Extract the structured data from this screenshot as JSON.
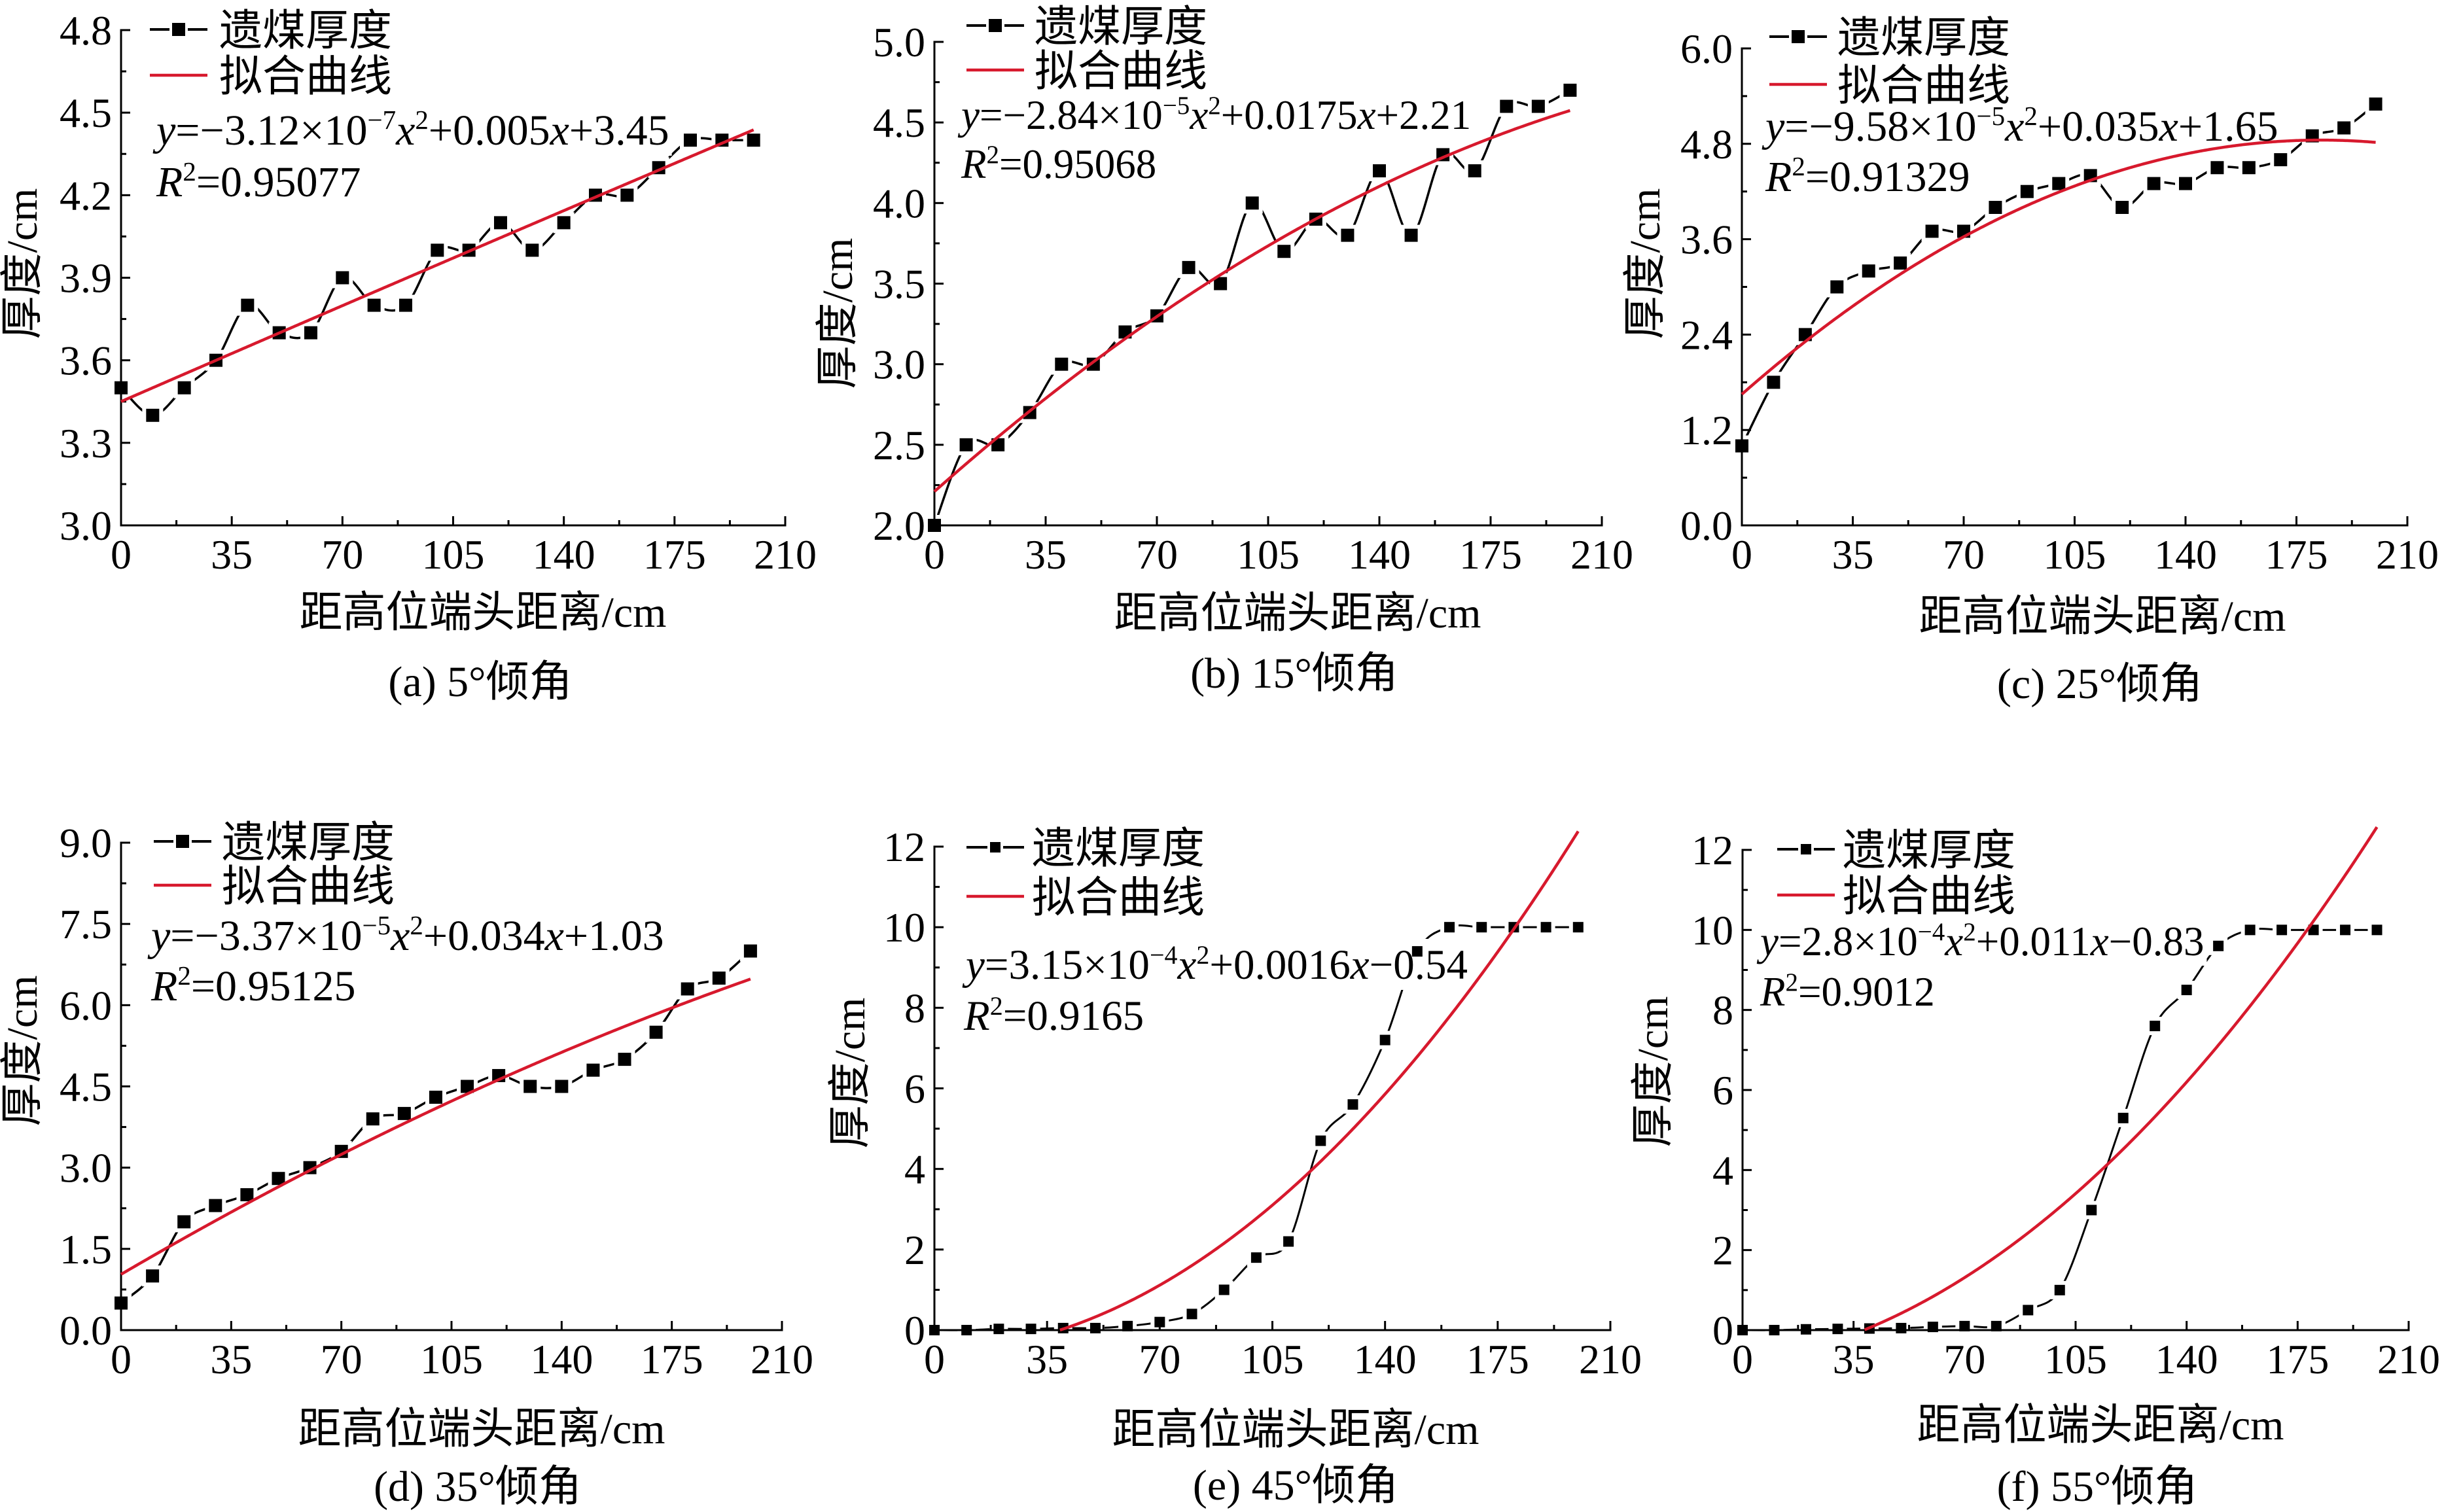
{
  "chart_data": [
    {
      "id": "a",
      "type": "line",
      "title": "(a) 5°倾角",
      "xlabel": "距高位端头距离/cm",
      "ylabel": "厚度/cm",
      "xlim": [
        0,
        210
      ],
      "ylim": [
        3.0,
        4.8
      ],
      "x_ticks": [
        "0",
        "35",
        "70",
        "105",
        "140",
        "175",
        "210"
      ],
      "y_ticks": [
        "3.0",
        "3.3",
        "3.6",
        "3.9",
        "4.2",
        "4.5",
        "4.8"
      ],
      "minor_ticks_between_major": 1,
      "grid": false,
      "legend_position": "top-left",
      "x": [
        0,
        10,
        20,
        30,
        40,
        50,
        60,
        70,
        80,
        90,
        100,
        110,
        120,
        130,
        140,
        150,
        160,
        170,
        180,
        190,
        200
      ],
      "series": [
        {
          "name": "遗煤厚度",
          "kind": "spline-with-square-markers",
          "color": "#000000",
          "values": [
            3.5,
            3.4,
            3.5,
            3.6,
            3.8,
            3.7,
            3.7,
            3.9,
            3.8,
            3.8,
            4.0,
            4.0,
            4.1,
            4.0,
            4.1,
            4.2,
            4.2,
            4.3,
            4.4,
            4.4,
            4.4
          ]
        },
        {
          "name": "拟合曲线",
          "kind": "quadratic-fit",
          "color": "#d7192d",
          "equation": "y=−3.12×10⁻⁷x²+0.005x+3.45",
          "r_squared": "R²=0.95077",
          "coefficients": {
            "a": -3.12e-07,
            "b": 0.005,
            "c": 3.45
          },
          "x_range": [
            0,
            200
          ]
        }
      ]
    },
    {
      "id": "b",
      "type": "line",
      "title": "(b) 15°倾角",
      "xlabel": "距高位端头距离/cm",
      "ylabel": "厚度/cm",
      "xlim": [
        0,
        210
      ],
      "ylim": [
        2.0,
        5.0
      ],
      "x_ticks": [
        "0",
        "35",
        "70",
        "105",
        "140",
        "175",
        "210"
      ],
      "y_ticks": [
        "2.0",
        "2.5",
        "3.0",
        "3.5",
        "4.0",
        "4.5",
        "5.0"
      ],
      "minor_ticks_between_major": 1,
      "grid": false,
      "legend_position": "top-left",
      "x": [
        0,
        10,
        20,
        30,
        40,
        50,
        60,
        70,
        80,
        90,
        100,
        110,
        120,
        130,
        140,
        150,
        160,
        170,
        180,
        190,
        200
      ],
      "series": [
        {
          "name": "遗煤厚度",
          "kind": "spline-with-square-markers",
          "color": "#000000",
          "values": [
            2.0,
            2.5,
            2.5,
            2.7,
            3.0,
            3.0,
            3.2,
            3.3,
            3.6,
            3.5,
            4.0,
            3.7,
            3.9,
            3.8,
            4.2,
            3.8,
            4.3,
            4.2,
            4.6,
            4.6,
            4.7
          ]
        },
        {
          "name": "拟合曲线",
          "kind": "quadratic-fit",
          "color": "#d7192d",
          "equation": "y=−2.84×10⁻⁵x²+0.0175x+2.21",
          "r_squared": "R²=0.95068",
          "coefficients": {
            "a": -2.84e-05,
            "b": 0.0175,
            "c": 2.21
          },
          "x_range": [
            0,
            200
          ]
        }
      ]
    },
    {
      "id": "c",
      "type": "line",
      "title": "(c) 25°倾角",
      "xlabel": "距高位端头距离/cm",
      "ylabel": "厚度/cm",
      "xlim": [
        0,
        210
      ],
      "ylim": [
        0.0,
        6.0
      ],
      "x_ticks": [
        "0",
        "35",
        "70",
        "105",
        "140",
        "175",
        "210"
      ],
      "y_ticks": [
        "0.0",
        "1.2",
        "2.4",
        "3.6",
        "4.8",
        "6.0"
      ],
      "minor_ticks_between_major": 1,
      "grid": false,
      "legend_position": "top-left",
      "x": [
        0,
        10,
        20,
        30,
        40,
        50,
        60,
        70,
        80,
        90,
        100,
        110,
        120,
        130,
        140,
        150,
        160,
        170,
        180,
        190,
        200
      ],
      "series": [
        {
          "name": "遗煤厚度",
          "kind": "spline-with-square-markers",
          "color": "#000000",
          "values": [
            1.0,
            1.8,
            2.4,
            3.0,
            3.2,
            3.3,
            3.7,
            3.7,
            4.0,
            4.2,
            4.3,
            4.4,
            4.0,
            4.3,
            4.3,
            4.5,
            4.5,
            4.6,
            4.9,
            5.0,
            5.3
          ]
        },
        {
          "name": "拟合曲线",
          "kind": "quadratic-fit",
          "color": "#d7192d",
          "equation": "y=−9.58×10⁻⁵x²+0.035x+1.65",
          "r_squared": "R²=0.91329",
          "coefficients": {
            "a": -9.58e-05,
            "b": 0.035,
            "c": 1.65
          },
          "x_range": [
            0,
            200
          ]
        }
      ]
    },
    {
      "id": "d",
      "type": "line",
      "title": "(d) 35°倾角",
      "xlabel": "距高位端头距离/cm",
      "ylabel": "厚度/cm",
      "xlim": [
        0,
        210
      ],
      "ylim": [
        0.0,
        9.0
      ],
      "x_ticks": [
        "0",
        "35",
        "70",
        "105",
        "140",
        "175",
        "210"
      ],
      "y_ticks": [
        "0.0",
        "1.5",
        "3.0",
        "4.5",
        "6.0",
        "7.5",
        "9.0"
      ],
      "minor_ticks_between_major": 1,
      "grid": false,
      "legend_position": "top-left",
      "x": [
        0,
        10,
        20,
        30,
        40,
        50,
        60,
        70,
        80,
        90,
        100,
        110,
        120,
        130,
        140,
        150,
        160,
        170,
        180,
        190,
        200
      ],
      "series": [
        {
          "name": "遗煤厚度",
          "kind": "spline-with-square-markers",
          "color": "#000000",
          "values": [
            0.5,
            1.0,
            2.0,
            2.3,
            2.5,
            2.8,
            3.0,
            3.3,
            3.9,
            4.0,
            4.3,
            4.5,
            4.7,
            4.5,
            4.5,
            4.8,
            5.0,
            5.5,
            6.3,
            6.5,
            7.0
          ]
        },
        {
          "name": "拟合曲线",
          "kind": "quadratic-fit",
          "color": "#d7192d",
          "equation": "y=−3.37×10⁻⁵x²+0.034x+1.03",
          "r_squared": "R²=0.95125",
          "coefficients": {
            "a": -3.37e-05,
            "b": 0.034,
            "c": 1.03
          },
          "x_range": [
            0,
            200
          ]
        }
      ]
    },
    {
      "id": "e",
      "type": "line",
      "title": "(e) 45°倾角",
      "xlabel": "距高位端头距离/cm",
      "ylabel": "厚度/cm",
      "xlim": [
        0,
        210
      ],
      "ylim": [
        0,
        12
      ],
      "x_ticks": [
        "0",
        "35",
        "70",
        "105",
        "140",
        "175",
        "210"
      ],
      "y_ticks": [
        "0",
        "2",
        "4",
        "6",
        "8",
        "10",
        "12"
      ],
      "minor_ticks_between_major": 1,
      "grid": false,
      "legend_position": "top-left",
      "x": [
        0,
        10,
        20,
        30,
        40,
        50,
        60,
        70,
        80,
        90,
        100,
        110,
        120,
        130,
        140,
        150,
        160,
        170,
        180,
        190,
        200
      ],
      "series": [
        {
          "name": "遗煤厚度",
          "kind": "spline-with-square-markers",
          "color": "#000000",
          "values": [
            0,
            0,
            0.03,
            0.03,
            0.05,
            0.05,
            0.1,
            0.2,
            0.4,
            1.0,
            1.8,
            2.2,
            4.7,
            5.6,
            7.2,
            9.4,
            10,
            10,
            10,
            10,
            10
          ]
        },
        {
          "name": "拟合曲线",
          "kind": "quadratic-fit",
          "color": "#d7192d",
          "equation": "y=3.15×10⁻⁴x²+0.0016x−0.54",
          "r_squared": "R²=0.9165",
          "coefficients": {
            "a": 0.000315,
            "b": 0.0016,
            "c": -0.54
          },
          "x_range": [
            0,
            200
          ]
        }
      ]
    },
    {
      "id": "f",
      "type": "line",
      "title": "(f) 55°倾角",
      "xlabel": "距高位端头距离/cm",
      "ylabel": "厚度/cm",
      "xlim": [
        0,
        210
      ],
      "ylim": [
        0,
        12
      ],
      "x_ticks": [
        "0",
        "35",
        "70",
        "105",
        "140",
        "175",
        "210"
      ],
      "y_ticks": [
        "0",
        "2",
        "4",
        "6",
        "8",
        "10",
        "12"
      ],
      "minor_ticks_between_major": 1,
      "grid": false,
      "legend_position": "top-left",
      "x": [
        0,
        10,
        20,
        30,
        40,
        50,
        60,
        70,
        80,
        90,
        100,
        110,
        120,
        130,
        140,
        150,
        160,
        170,
        180,
        190,
        200
      ],
      "series": [
        {
          "name": "遗煤厚度",
          "kind": "spline-with-square-markers",
          "color": "#000000",
          "values": [
            0,
            0,
            0.02,
            0.03,
            0.04,
            0.05,
            0.08,
            0.1,
            0.1,
            0.5,
            1.0,
            3.0,
            5.3,
            7.6,
            8.5,
            9.6,
            10,
            10,
            10,
            10,
            10
          ]
        },
        {
          "name": "拟合曲线",
          "kind": "quadratic-fit",
          "color": "#d7192d",
          "equation": "y=2.8×10⁻⁴x²+0.011x−0.83",
          "r_squared": "R²=0.9012",
          "coefficients": {
            "a": 0.00028,
            "b": 0.011,
            "c": -0.83
          },
          "x_range": [
            0,
            200
          ]
        }
      ]
    }
  ]
}
